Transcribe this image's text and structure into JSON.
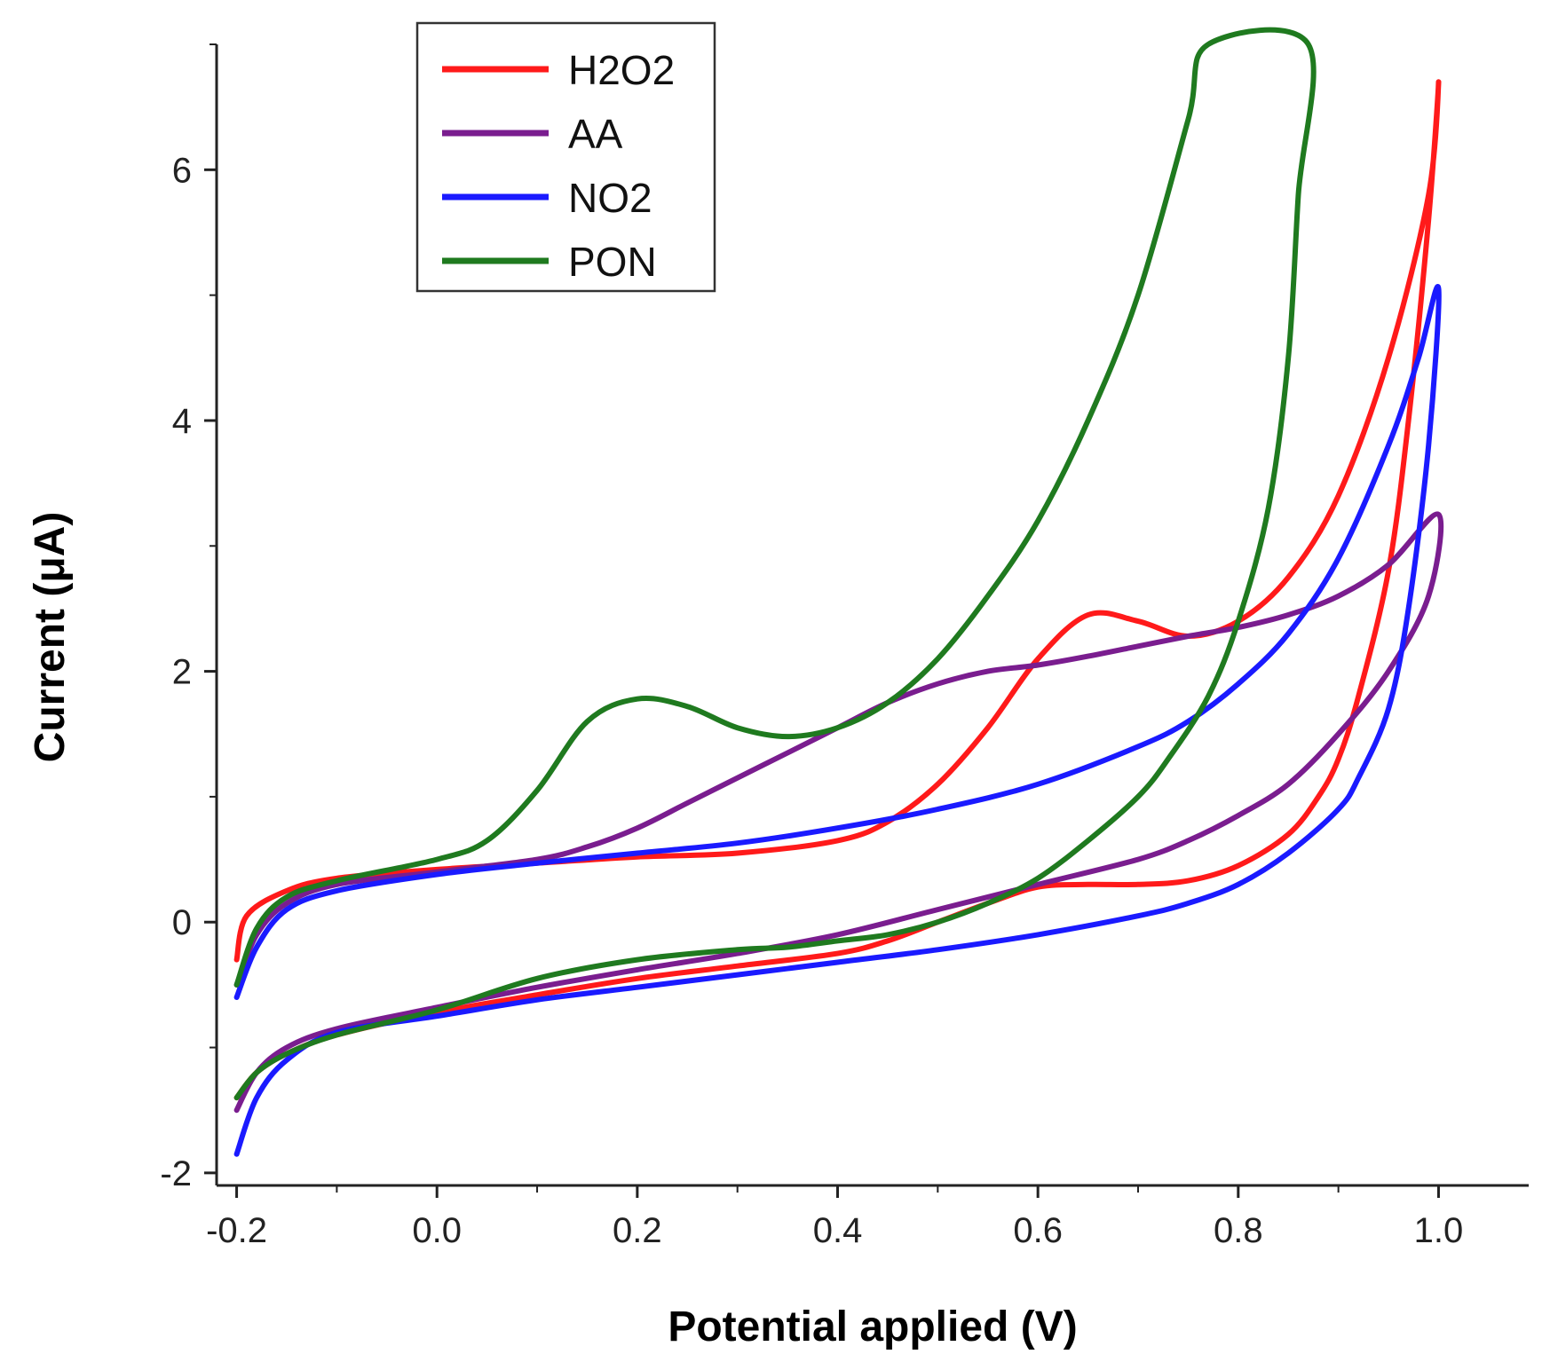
{
  "chart_data": {
    "type": "line",
    "xlabel": "Potential applied (V)",
    "ylabel": "Current (μA)",
    "xlim": [
      -0.22,
      1.09
    ],
    "ylim": [
      -2.1,
      7.0
    ],
    "x_ticks": [
      -0.2,
      0.0,
      0.2,
      0.4,
      0.6,
      0.8,
      1.0
    ],
    "x_tick_labels": [
      "-0.2",
      "0.0",
      "0.2",
      "0.4",
      "0.6",
      "0.8",
      "1.0"
    ],
    "y_ticks": [
      -2,
      0,
      2,
      4,
      6
    ],
    "y_tick_labels": [
      "-2",
      "0",
      "2",
      "4",
      "6"
    ],
    "grid": false,
    "legend_position": "top-left",
    "series": [
      {
        "name": "H2O2",
        "color": "#ff1a1a",
        "points": [
          [
            -0.2,
            -0.3
          ],
          [
            -0.19,
            0.05
          ],
          [
            -0.15,
            0.25
          ],
          [
            -0.1,
            0.35
          ],
          [
            0.0,
            0.42
          ],
          [
            0.1,
            0.47
          ],
          [
            0.2,
            0.52
          ],
          [
            0.3,
            0.55
          ],
          [
            0.4,
            0.65
          ],
          [
            0.45,
            0.8
          ],
          [
            0.5,
            1.1
          ],
          [
            0.55,
            1.55
          ],
          [
            0.6,
            2.1
          ],
          [
            0.65,
            2.45
          ],
          [
            0.7,
            2.4
          ],
          [
            0.75,
            2.28
          ],
          [
            0.8,
            2.4
          ],
          [
            0.85,
            2.75
          ],
          [
            0.9,
            3.4
          ],
          [
            0.95,
            4.5
          ],
          [
            0.99,
            5.8
          ],
          [
            1.0,
            6.7
          ],
          [
            0.99,
            5.6
          ],
          [
            0.97,
            4.0
          ],
          [
            0.95,
            2.8
          ],
          [
            0.92,
            1.8
          ],
          [
            0.9,
            1.3
          ],
          [
            0.88,
            1.0
          ],
          [
            0.85,
            0.7
          ],
          [
            0.8,
            0.45
          ],
          [
            0.75,
            0.33
          ],
          [
            0.7,
            0.3
          ],
          [
            0.65,
            0.3
          ],
          [
            0.6,
            0.28
          ],
          [
            0.55,
            0.15
          ],
          [
            0.5,
            0.0
          ],
          [
            0.45,
            -0.15
          ],
          [
            0.4,
            -0.25
          ],
          [
            0.3,
            -0.35
          ],
          [
            0.2,
            -0.45
          ],
          [
            0.1,
            -0.58
          ],
          [
            0.0,
            -0.72
          ],
          [
            -0.1,
            -0.9
          ],
          [
            -0.15,
            -1.05
          ],
          [
            -0.18,
            -1.2
          ],
          [
            -0.2,
            -1.4
          ]
        ]
      },
      {
        "name": "AA",
        "color": "#7a1d8f",
        "points": [
          [
            -0.2,
            -0.5
          ],
          [
            -0.18,
            -0.1
          ],
          [
            -0.15,
            0.15
          ],
          [
            -0.1,
            0.3
          ],
          [
            0.0,
            0.4
          ],
          [
            0.1,
            0.5
          ],
          [
            0.15,
            0.6
          ],
          [
            0.2,
            0.75
          ],
          [
            0.25,
            0.95
          ],
          [
            0.3,
            1.15
          ],
          [
            0.35,
            1.35
          ],
          [
            0.4,
            1.55
          ],
          [
            0.45,
            1.75
          ],
          [
            0.5,
            1.9
          ],
          [
            0.55,
            2.0
          ],
          [
            0.6,
            2.05
          ],
          [
            0.65,
            2.12
          ],
          [
            0.7,
            2.2
          ],
          [
            0.75,
            2.28
          ],
          [
            0.8,
            2.35
          ],
          [
            0.85,
            2.45
          ],
          [
            0.9,
            2.6
          ],
          [
            0.95,
            2.85
          ],
          [
            1.0,
            3.25
          ],
          [
            0.99,
            2.6
          ],
          [
            0.95,
            2.0
          ],
          [
            0.9,
            1.5
          ],
          [
            0.85,
            1.1
          ],
          [
            0.8,
            0.85
          ],
          [
            0.75,
            0.65
          ],
          [
            0.7,
            0.5
          ],
          [
            0.6,
            0.3
          ],
          [
            0.5,
            0.1
          ],
          [
            0.4,
            -0.1
          ],
          [
            0.3,
            -0.25
          ],
          [
            0.2,
            -0.38
          ],
          [
            0.1,
            -0.52
          ],
          [
            0.0,
            -0.68
          ],
          [
            -0.1,
            -0.85
          ],
          [
            -0.15,
            -1.0
          ],
          [
            -0.18,
            -1.2
          ],
          [
            -0.2,
            -1.5
          ]
        ]
      },
      {
        "name": "NO2",
        "color": "#1a1aff",
        "points": [
          [
            -0.2,
            -0.6
          ],
          [
            -0.18,
            -0.2
          ],
          [
            -0.15,
            0.1
          ],
          [
            -0.1,
            0.25
          ],
          [
            0.0,
            0.38
          ],
          [
            0.1,
            0.47
          ],
          [
            0.2,
            0.55
          ],
          [
            0.3,
            0.63
          ],
          [
            0.4,
            0.75
          ],
          [
            0.5,
            0.9
          ],
          [
            0.6,
            1.1
          ],
          [
            0.7,
            1.4
          ],
          [
            0.75,
            1.6
          ],
          [
            0.8,
            1.9
          ],
          [
            0.85,
            2.3
          ],
          [
            0.9,
            2.9
          ],
          [
            0.95,
            3.8
          ],
          [
            0.98,
            4.5
          ],
          [
            1.0,
            5.05
          ],
          [
            0.99,
            3.8
          ],
          [
            0.97,
            2.5
          ],
          [
            0.95,
            1.7
          ],
          [
            0.92,
            1.15
          ],
          [
            0.9,
            0.9
          ],
          [
            0.85,
            0.55
          ],
          [
            0.8,
            0.3
          ],
          [
            0.75,
            0.15
          ],
          [
            0.7,
            0.05
          ],
          [
            0.6,
            -0.1
          ],
          [
            0.5,
            -0.22
          ],
          [
            0.4,
            -0.32
          ],
          [
            0.3,
            -0.42
          ],
          [
            0.2,
            -0.52
          ],
          [
            0.1,
            -0.62
          ],
          [
            0.0,
            -0.75
          ],
          [
            -0.1,
            -0.88
          ],
          [
            -0.15,
            -1.1
          ],
          [
            -0.18,
            -1.4
          ],
          [
            -0.2,
            -1.85
          ]
        ]
      },
      {
        "name": "PON",
        "color": "#1f7a1f",
        "points": [
          [
            -0.2,
            -0.5
          ],
          [
            -0.18,
            -0.05
          ],
          [
            -0.15,
            0.2
          ],
          [
            -0.1,
            0.33
          ],
          [
            0.0,
            0.5
          ],
          [
            0.05,
            0.65
          ],
          [
            0.1,
            1.05
          ],
          [
            0.15,
            1.6
          ],
          [
            0.2,
            1.78
          ],
          [
            0.25,
            1.72
          ],
          [
            0.3,
            1.55
          ],
          [
            0.35,
            1.48
          ],
          [
            0.4,
            1.55
          ],
          [
            0.45,
            1.75
          ],
          [
            0.5,
            2.1
          ],
          [
            0.55,
            2.6
          ],
          [
            0.6,
            3.2
          ],
          [
            0.65,
            4.0
          ],
          [
            0.7,
            5.0
          ],
          [
            0.75,
            6.4
          ],
          [
            0.77,
            7.0
          ],
          [
            0.87,
            7.0
          ],
          [
            0.86,
            5.8
          ],
          [
            0.85,
            4.5
          ],
          [
            0.83,
            3.3
          ],
          [
            0.8,
            2.4
          ],
          [
            0.77,
            1.8
          ],
          [
            0.73,
            1.3
          ],
          [
            0.7,
            1.0
          ],
          [
            0.65,
            0.65
          ],
          [
            0.6,
            0.35
          ],
          [
            0.55,
            0.15
          ],
          [
            0.5,
            0.0
          ],
          [
            0.45,
            -0.1
          ],
          [
            0.4,
            -0.15
          ],
          [
            0.35,
            -0.2
          ],
          [
            0.3,
            -0.22
          ],
          [
            0.2,
            -0.3
          ],
          [
            0.1,
            -0.45
          ],
          [
            0.0,
            -0.7
          ],
          [
            -0.1,
            -0.9
          ],
          [
            -0.15,
            -1.05
          ],
          [
            -0.18,
            -1.2
          ],
          [
            -0.2,
            -1.4
          ]
        ]
      }
    ]
  }
}
